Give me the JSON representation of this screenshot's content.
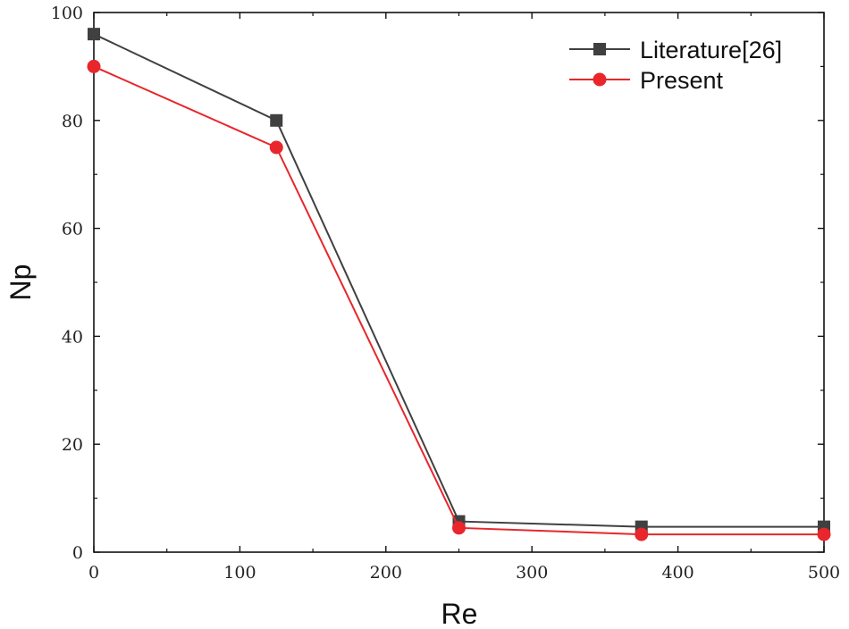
{
  "chart_data": {
    "type": "line",
    "xlabel": "Re",
    "ylabel": "Np",
    "xlim": [
      0,
      500
    ],
    "ylim": [
      0,
      100
    ],
    "xticks": [
      0,
      100,
      200,
      300,
      400,
      500
    ],
    "yticks": [
      0,
      20,
      40,
      60,
      80,
      100
    ],
    "grid": false,
    "legend_position": "top-right",
    "series": [
      {
        "name": "Literature[26]",
        "color": "#404040",
        "marker": "square",
        "x": [
          0,
          125,
          250,
          375,
          500
        ],
        "y": [
          96,
          80,
          5.7,
          4.7,
          4.7
        ]
      },
      {
        "name": "Present",
        "color": "#e8262b",
        "marker": "circle",
        "x": [
          0,
          125,
          250,
          375,
          500
        ],
        "y": [
          90,
          75,
          4.5,
          3.3,
          3.3
        ]
      }
    ]
  }
}
